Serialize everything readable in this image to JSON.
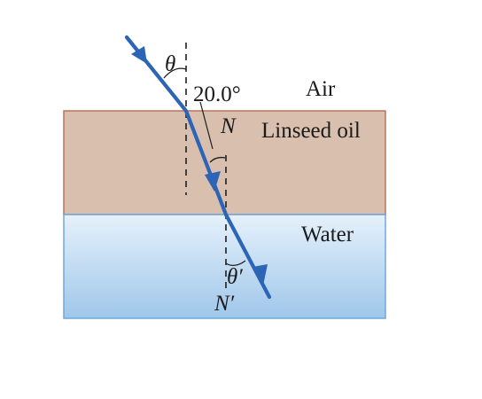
{
  "media": {
    "air_label": "Air",
    "oil_label": "Linseed oil",
    "water_label": "Water"
  },
  "angles": {
    "incident_angle_label": "θ",
    "oil_angle_label": "20.0°",
    "water_angle_label": "θ′"
  },
  "normals": {
    "first_normal_label": "N",
    "second_normal_label": "N′"
  },
  "colors": {
    "oil_fill": "#d9bfae",
    "oil_border": "#b9735f",
    "water_top": "#e6f1fb",
    "water_bottom": "#9fc7ea",
    "water_border": "#6fa8da",
    "ray": "#2c65b6"
  }
}
